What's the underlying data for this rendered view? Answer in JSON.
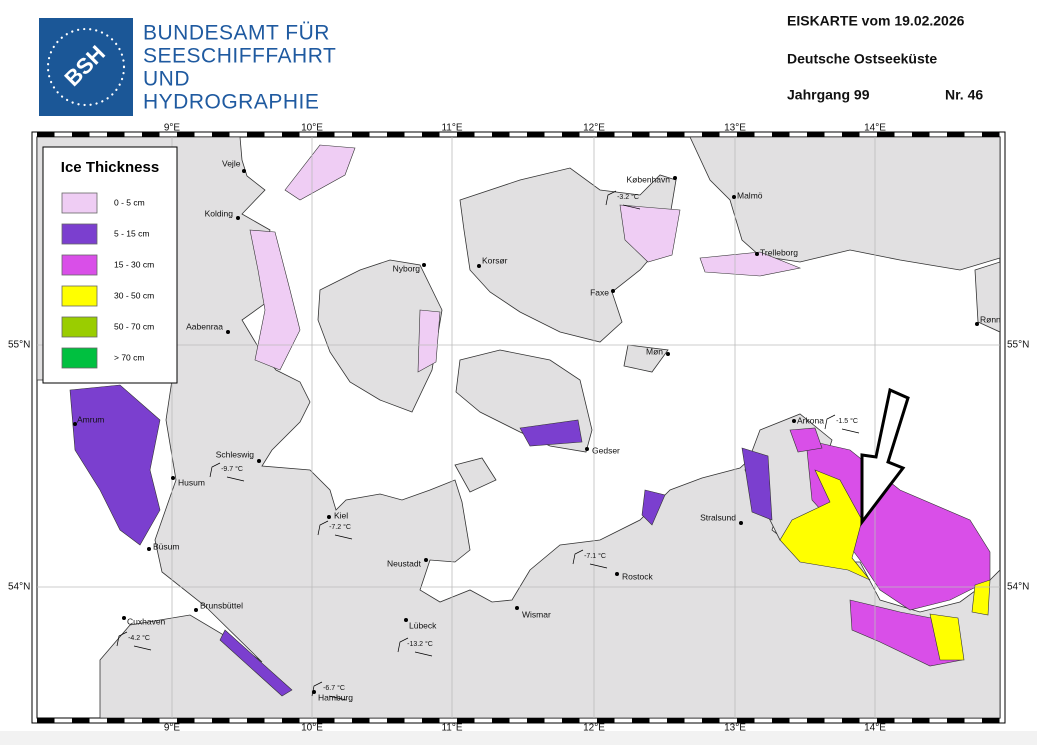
{
  "header": {
    "logo": "BSH",
    "org_lines": [
      "BUNDESAMT FÜR",
      "SEESCHIFFFAHRT",
      "UND",
      "HYDROGRAPHIE"
    ],
    "title": "EISKARTE vom 19.02.2026",
    "region": "Deutsche Ostseeküste",
    "volume": "Jahrgang 99",
    "number": "Nr. 46"
  },
  "map": {
    "lon_labels": [
      "9°E",
      "10°E",
      "11°E",
      "12°E",
      "13°E",
      "14°E"
    ],
    "lat_labels": [
      "55°N",
      "54°N"
    ],
    "legend": {
      "title": "Ice Thickness",
      "items": [
        {
          "label": "0 - 5 cm",
          "color": "#efcdf4"
        },
        {
          "label": "5 - 15 cm",
          "color": "#7b3fcf"
        },
        {
          "label": "15 - 30 cm",
          "color": "#d94fe8"
        },
        {
          "label": "30 - 50 cm",
          "color": "#ffff00"
        },
        {
          "label": "50 - 70 cm",
          "color": "#9acd00"
        },
        {
          "label": "> 70 cm",
          "color": "#00c040"
        }
      ]
    },
    "places": [
      "Vejle",
      "Kolding",
      "Aabenraa",
      "Amrum",
      "Husum",
      "Büsum",
      "Cuxhaven",
      "Brunsbüttel",
      "Hamburg",
      "Schleswig",
      "Kiel",
      "Neustadt",
      "Lübeck",
      "Wismar",
      "Rostock",
      "Gedser",
      "Stralsund",
      "Arkona",
      "Nyborg",
      "Korsør",
      "Faxe",
      "Møn",
      "København",
      "Malmö",
      "Trelleborg",
      "Rønne"
    ],
    "temperatures": [
      "-3.2 °C",
      "-1.5 °C",
      "-9.7 °C",
      "-7.2 °C",
      "-7.1 °C",
      "-4.2 °C",
      "-13.2 °C",
      "-6.7 °C"
    ]
  }
}
